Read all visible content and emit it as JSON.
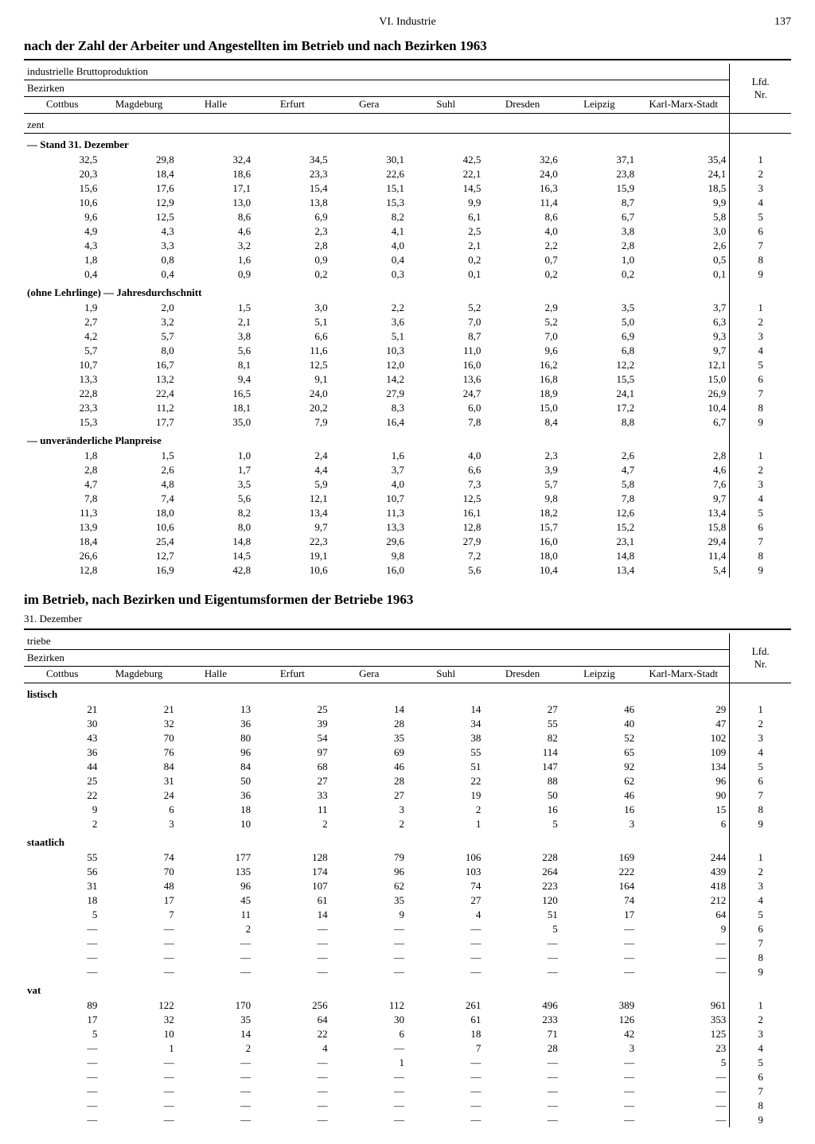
{
  "page": {
    "chapter": "VI. Industrie",
    "number": "137"
  },
  "table1": {
    "title": "nach der Zahl der Arbeiter und Angestellten im Betrieb und nach Bezirken 1963",
    "header1": "industrielle Bruttoproduktion",
    "header2": "Bezirken",
    "lfd_label": "Lfd.\nNr.",
    "columns": [
      "Cottbus",
      "Magdeburg",
      "Halle",
      "Erfurt",
      "Gera",
      "Suhl",
      "Dresden",
      "Leipzig",
      "Karl-Marx-Stadt"
    ],
    "subheader": "zent",
    "sections": [
      {
        "label": "— Stand 31. Dezember",
        "rows": [
          [
            "32,5",
            "29,8",
            "32,4",
            "34,5",
            "30,1",
            "42,5",
            "32,6",
            "37,1",
            "35,4",
            "1"
          ],
          [
            "20,3",
            "18,4",
            "18,6",
            "23,3",
            "22,6",
            "22,1",
            "24,0",
            "23,8",
            "24,1",
            "2"
          ],
          [
            "15,6",
            "17,6",
            "17,1",
            "15,4",
            "15,1",
            "14,5",
            "16,3",
            "15,9",
            "18,5",
            "3"
          ],
          [
            "10,6",
            "12,9",
            "13,0",
            "13,8",
            "15,3",
            "9,9",
            "11,4",
            "8,7",
            "9,9",
            "4"
          ],
          [
            "9,6",
            "12,5",
            "8,6",
            "6,9",
            "8,2",
            "6,1",
            "8,6",
            "6,7",
            "5,8",
            "5"
          ],
          [
            "4,9",
            "4,3",
            "4,6",
            "2,3",
            "4,1",
            "2,5",
            "4,0",
            "3,8",
            "3,0",
            "6"
          ],
          [
            "4,3",
            "3,3",
            "3,2",
            "2,8",
            "4,0",
            "2,1",
            "2,2",
            "2,8",
            "2,6",
            "7"
          ],
          [
            "1,8",
            "0,8",
            "1,6",
            "0,9",
            "0,4",
            "0,2",
            "0,7",
            "1,0",
            "0,5",
            "8"
          ],
          [
            "0,4",
            "0,4",
            "0,9",
            "0,2",
            "0,3",
            "0,1",
            "0,2",
            "0,2",
            "0,1",
            "9"
          ]
        ]
      },
      {
        "label": "(ohne Lehrlinge) — Jahresdurchschnitt",
        "rows": [
          [
            "1,9",
            "2,0",
            "1,5",
            "3,0",
            "2,2",
            "5,2",
            "2,9",
            "3,5",
            "3,7",
            "1"
          ],
          [
            "2,7",
            "3,2",
            "2,1",
            "5,1",
            "3,6",
            "7,0",
            "5,2",
            "5,0",
            "6,3",
            "2"
          ],
          [
            "4,2",
            "5,7",
            "3,8",
            "6,6",
            "5,1",
            "8,7",
            "7,0",
            "6,9",
            "9,3",
            "3"
          ],
          [
            "5,7",
            "8,0",
            "5,6",
            "11,6",
            "10,3",
            "11,0",
            "9,6",
            "6,8",
            "9,7",
            "4"
          ],
          [
            "10,7",
            "16,7",
            "8,1",
            "12,5",
            "12,0",
            "16,0",
            "16,2",
            "12,2",
            "12,1",
            "5"
          ],
          [
            "13,3",
            "13,2",
            "9,4",
            "9,1",
            "14,2",
            "13,6",
            "16,8",
            "15,5",
            "15,0",
            "6"
          ],
          [
            "22,8",
            "22,4",
            "16,5",
            "24,0",
            "27,9",
            "24,7",
            "18,9",
            "24,1",
            "26,9",
            "7"
          ],
          [
            "23,3",
            "11,2",
            "18,1",
            "20,2",
            "8,3",
            "6,0",
            "15,0",
            "17,2",
            "10,4",
            "8"
          ],
          [
            "15,3",
            "17,7",
            "35,0",
            "7,9",
            "16,4",
            "7,8",
            "8,4",
            "8,8",
            "6,7",
            "9"
          ]
        ]
      },
      {
        "label": "— unveränderliche Planpreise",
        "rows": [
          [
            "1,8",
            "1,5",
            "1,0",
            "2,4",
            "1,6",
            "4,0",
            "2,3",
            "2,6",
            "2,8",
            "1"
          ],
          [
            "2,8",
            "2,6",
            "1,7",
            "4,4",
            "3,7",
            "6,6",
            "3,9",
            "4,7",
            "4,6",
            "2"
          ],
          [
            "4,7",
            "4,8",
            "3,5",
            "5,9",
            "4,0",
            "7,3",
            "5,7",
            "5,8",
            "7,6",
            "3"
          ],
          [
            "7,8",
            "7,4",
            "5,6",
            "12,1",
            "10,7",
            "12,5",
            "9,8",
            "7,8",
            "9,7",
            "4"
          ],
          [
            "11,3",
            "18,0",
            "8,2",
            "13,4",
            "11,3",
            "16,1",
            "18,2",
            "12,6",
            "13,4",
            "5"
          ],
          [
            "13,9",
            "10,6",
            "8,0",
            "9,7",
            "13,3",
            "12,8",
            "15,7",
            "15,2",
            "15,8",
            "6"
          ],
          [
            "18,4",
            "25,4",
            "14,8",
            "22,3",
            "29,6",
            "27,9",
            "16,0",
            "23,1",
            "29,4",
            "7"
          ],
          [
            "26,6",
            "12,7",
            "14,5",
            "19,1",
            "9,8",
            "7,2",
            "18,0",
            "14,8",
            "11,4",
            "8"
          ],
          [
            "12,8",
            "16,9",
            "42,8",
            "10,6",
            "16,0",
            "5,6",
            "10,4",
            "13,4",
            "5,4",
            "9"
          ]
        ]
      }
    ]
  },
  "table2": {
    "title": "im Betrieb, nach Bezirken und Eigentumsformen der Betriebe 1963",
    "subtitle": "31. Dezember",
    "header1": "triebe",
    "header2": "Bezirken",
    "lfd_label": "Lfd.\nNr.",
    "columns": [
      "Cottbus",
      "Magdeburg",
      "Halle",
      "Erfurt",
      "Gera",
      "Suhl",
      "Dresden",
      "Leipzig",
      "Karl-Marx-Stadt"
    ],
    "sections": [
      {
        "label": "listisch",
        "rows": [
          [
            "21",
            "21",
            "13",
            "25",
            "14",
            "14",
            "27",
            "46",
            "29",
            "1"
          ],
          [
            "30",
            "32",
            "36",
            "39",
            "28",
            "34",
            "55",
            "40",
            "47",
            "2"
          ],
          [
            "43",
            "70",
            "80",
            "54",
            "35",
            "38",
            "82",
            "52",
            "102",
            "3"
          ],
          [
            "36",
            "76",
            "96",
            "97",
            "69",
            "55",
            "114",
            "65",
            "109",
            "4"
          ],
          [
            "44",
            "84",
            "84",
            "68",
            "46",
            "51",
            "147",
            "92",
            "134",
            "5"
          ],
          [
            "25",
            "31",
            "50",
            "27",
            "28",
            "22",
            "88",
            "62",
            "96",
            "6"
          ],
          [
            "22",
            "24",
            "36",
            "33",
            "27",
            "19",
            "50",
            "46",
            "90",
            "7"
          ],
          [
            "9",
            "6",
            "18",
            "11",
            "3",
            "2",
            "16",
            "16",
            "15",
            "8"
          ],
          [
            "2",
            "3",
            "10",
            "2",
            "2",
            "1",
            "5",
            "3",
            "6",
            "9"
          ]
        ]
      },
      {
        "label": "staatlich",
        "rows": [
          [
            "55",
            "74",
            "177",
            "128",
            "79",
            "106",
            "228",
            "169",
            "244",
            "1"
          ],
          [
            "56",
            "70",
            "135",
            "174",
            "96",
            "103",
            "264",
            "222",
            "439",
            "2"
          ],
          [
            "31",
            "48",
            "96",
            "107",
            "62",
            "74",
            "223",
            "164",
            "418",
            "3"
          ],
          [
            "18",
            "17",
            "45",
            "61",
            "35",
            "27",
            "120",
            "74",
            "212",
            "4"
          ],
          [
            "5",
            "7",
            "11",
            "14",
            "9",
            "4",
            "51",
            "17",
            "64",
            "5"
          ],
          [
            "—",
            "—",
            "2",
            "—",
            "—",
            "—",
            "5",
            "—",
            "9",
            "6"
          ],
          [
            "—",
            "—",
            "—",
            "—",
            "—",
            "—",
            "—",
            "—",
            "—",
            "7"
          ],
          [
            "—",
            "—",
            "—",
            "—",
            "—",
            "—",
            "—",
            "—",
            "—",
            "8"
          ],
          [
            "—",
            "—",
            "—",
            "—",
            "—",
            "—",
            "—",
            "—",
            "—",
            "9"
          ]
        ]
      },
      {
        "label": "vat",
        "rows": [
          [
            "89",
            "122",
            "170",
            "256",
            "112",
            "261",
            "496",
            "389",
            "961",
            "1"
          ],
          [
            "17",
            "32",
            "35",
            "64",
            "30",
            "61",
            "233",
            "126",
            "353",
            "2"
          ],
          [
            "5",
            "10",
            "14",
            "22",
            "6",
            "18",
            "71",
            "42",
            "125",
            "3"
          ],
          [
            "—",
            "1",
            "2",
            "4",
            "—",
            "7",
            "28",
            "3",
            "23",
            "4"
          ],
          [
            "—",
            "—",
            "—",
            "—",
            "1",
            "—",
            "—",
            "—",
            "5",
            "5"
          ],
          [
            "—",
            "—",
            "—",
            "—",
            "—",
            "—",
            "—",
            "—",
            "—",
            "6"
          ],
          [
            "—",
            "—",
            "—",
            "—",
            "—",
            "—",
            "—",
            "—",
            "—",
            "7"
          ],
          [
            "—",
            "—",
            "—",
            "—",
            "—",
            "—",
            "—",
            "—",
            "—",
            "8"
          ],
          [
            "—",
            "—",
            "—",
            "—",
            "—",
            "—",
            "—",
            "—",
            "—",
            "9"
          ]
        ]
      }
    ]
  }
}
